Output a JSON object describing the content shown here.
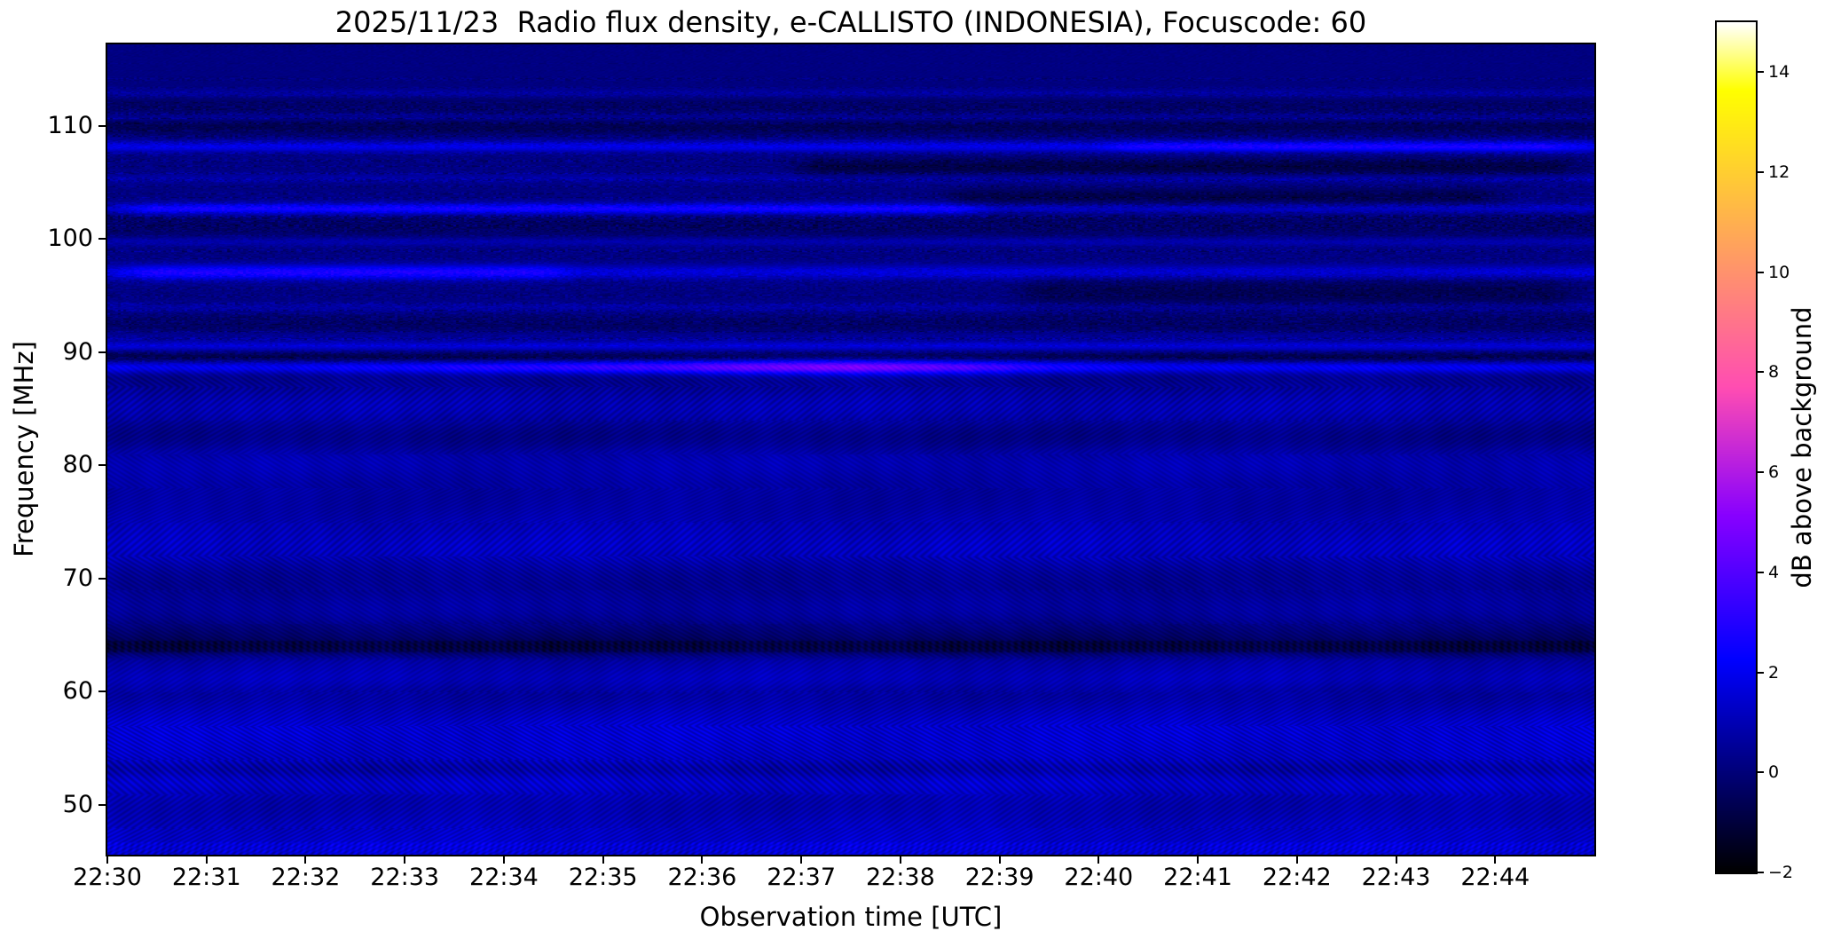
{
  "figure": {
    "title": "2025/11/23  Radio flux density, e-CALLISTO (INDONESIA), Focuscode: 60",
    "x_axis": {
      "label": "Observation time [UTC]",
      "tick_labels": [
        "22:30",
        "22:31",
        "22:32",
        "22:33",
        "22:34",
        "22:35",
        "22:36",
        "22:37",
        "22:38",
        "22:39",
        "22:40",
        "22:41",
        "22:42",
        "22:43",
        "22:44"
      ],
      "range_minutes": [
        0,
        15
      ]
    },
    "y_axis": {
      "label": "Frequency [MHz]",
      "tick_values": [
        50,
        60,
        70,
        80,
        90,
        100,
        110
      ],
      "range_mhz": [
        45.6,
        117.2
      ]
    },
    "colorbar": {
      "label": "dB above background",
      "tick_values": [
        -2,
        0,
        2,
        4,
        6,
        8,
        10,
        12,
        14
      ],
      "range_db": [
        -2,
        15
      ],
      "colormap": "gnuplot2",
      "gradient_stops": {
        "-2": "#000000",
        "0": "#000078",
        "2": "#0000F0",
        "4": "#5200FF",
        "6": "#B01AE5",
        "8": "#FF56A9",
        "10": "#FF926D",
        "12": "#FFCE31",
        "14": "#FFFF44",
        "15": "#FFFFFF"
      }
    }
  },
  "chart_data": {
    "type": "heatmap",
    "description": "Solar radio spectrogram: dB above background vs time (22:30-22:45 UTC) and frequency (45.6-117.2 MHz). Dark navy background ~0 dB; speckled RFI zone above ~89 MHz with bright and dark horizontal interference lines; smooth rippled zone below ~89 MHz with broad brightness bands.",
    "background_db": {
      "speckle_zone": 0.15,
      "smooth_zone": 0.2
    },
    "speckle_zone_fmin_mhz": 88.9,
    "bands": [
      {
        "f": 112.9,
        "w": 0.3,
        "a": 0.7
      },
      {
        "f": 111.9,
        "w": 0.9,
        "a": -0.45
      },
      {
        "f": 110.8,
        "w": 0.25,
        "a": 0.55
      },
      {
        "f": 109.9,
        "w": 0.5,
        "a": -0.7
      },
      {
        "f": 108.2,
        "w": 0.35,
        "a": 1.7
      },
      {
        "f": 108.2,
        "w": 0.35,
        "a": 0.9,
        "t0": 0.66,
        "t1": 1.0
      },
      {
        "f": 106.4,
        "w": 0.55,
        "a": -1.0,
        "t0": 0.45,
        "t1": 1.0
      },
      {
        "f": 105.4,
        "w": 0.3,
        "a": 0.6
      },
      {
        "f": 103.8,
        "w": 0.5,
        "a": -0.9,
        "t0": 0.55,
        "t1": 0.95
      },
      {
        "f": 102.7,
        "w": 0.32,
        "a": 1.2
      },
      {
        "f": 102.7,
        "w": 0.4,
        "a": 1.4,
        "t0": 0.0,
        "t1": 0.6
      },
      {
        "f": 101.3,
        "w": 0.9,
        "a": -0.5
      },
      {
        "f": 99.8,
        "w": 0.3,
        "a": 0.8
      },
      {
        "f": 97.1,
        "w": 0.45,
        "a": 1.5
      },
      {
        "f": 97.1,
        "w": 0.5,
        "a": 1.2,
        "t0": 0.0,
        "t1": 0.32
      },
      {
        "f": 95.3,
        "w": 1.1,
        "a": -0.75,
        "t0": 0.6,
        "t1": 1.0
      },
      {
        "f": 94.0,
        "w": 0.3,
        "a": 0.6
      },
      {
        "f": 92.4,
        "w": 0.7,
        "a": -0.45
      },
      {
        "f": 91.5,
        "w": 0.3,
        "a": 0.5
      },
      {
        "f": 90.6,
        "w": 0.3,
        "a": 1.4
      },
      {
        "f": 89.6,
        "w": 0.3,
        "a": -0.9
      },
      {
        "f": 88.7,
        "w": 0.38,
        "a": 1.8
      },
      {
        "f": 88.75,
        "w": 0.5,
        "a": 2.6,
        "tp": 0.5,
        "tw": 0.09
      },
      {
        "f": 88.7,
        "w": 0.4,
        "a": 0.9,
        "tp": 0.33,
        "tw": 0.1
      },
      {
        "f": 86.0,
        "w": 1.0,
        "a": 0.35
      },
      {
        "f": 84.8,
        "w": 1.0,
        "a": 0.55
      },
      {
        "f": 82.3,
        "w": 0.9,
        "a": -0.25
      },
      {
        "f": 80.3,
        "w": 1.4,
        "a": 0.75
      },
      {
        "f": 77.5,
        "w": 1.1,
        "a": 0.25
      },
      {
        "f": 74.8,
        "w": 1.4,
        "a": 0.6
      },
      {
        "f": 72.5,
        "w": 1.2,
        "a": 0.8
      },
      {
        "f": 70.0,
        "w": 0.9,
        "a": 0.1
      },
      {
        "f": 67.5,
        "w": 1.1,
        "a": 0.45
      },
      {
        "f": 65.3,
        "w": 0.7,
        "a": -0.3
      },
      {
        "f": 64.0,
        "w": 0.6,
        "a": -0.8
      },
      {
        "f": 62.8,
        "w": 0.5,
        "a": 0.3
      },
      {
        "f": 61.3,
        "w": 0.9,
        "a": 0.85
      },
      {
        "f": 58.8,
        "w": 0.9,
        "a": 0.35
      },
      {
        "f": 56.8,
        "w": 1.2,
        "a": 1.05
      },
      {
        "f": 54.3,
        "w": 1.3,
        "a": 0.9
      },
      {
        "f": 53.2,
        "w": 0.5,
        "a": -0.45
      },
      {
        "f": 51.8,
        "w": 0.9,
        "a": 0.95
      },
      {
        "f": 49.8,
        "w": 0.9,
        "a": 0.4
      },
      {
        "f": 47.8,
        "w": 1.1,
        "a": 0.85
      },
      {
        "f": 46.0,
        "w": 0.9,
        "a": 0.8
      }
    ],
    "ripple_extra": [
      {
        "f": 56.5,
        "w": 2.0,
        "a": 0.32
      },
      {
        "f": 53.0,
        "w": 2.0,
        "a": 0.26
      },
      {
        "f": 72.5,
        "w": 2.2,
        "a": 0.22
      },
      {
        "f": 85.8,
        "w": 1.8,
        "a": 0.2
      },
      {
        "f": 47.0,
        "w": 1.5,
        "a": 0.26
      }
    ],
    "dash_band": {
      "f": 64.0,
      "w": 0.5,
      "depth": 0.65
    },
    "bottom_stripes": {
      "f_max": 46.7,
      "boost": 0.3,
      "stripe": 0.4
    }
  }
}
